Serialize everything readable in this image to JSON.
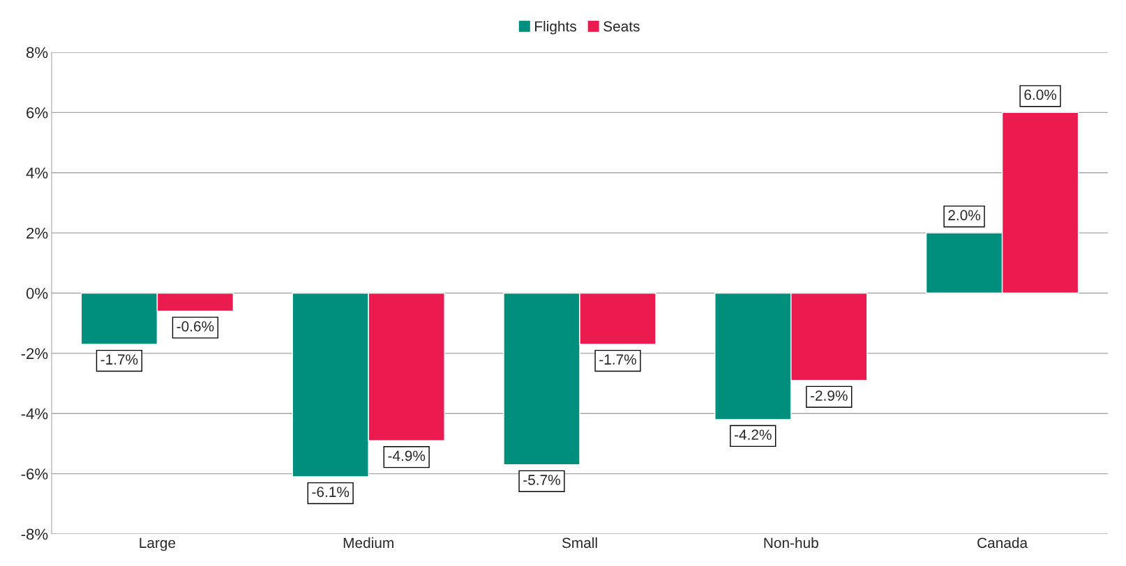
{
  "chart_data": {
    "type": "bar",
    "categories": [
      "Large",
      "Medium",
      "Small",
      "Non-hub",
      "Canada"
    ],
    "series": [
      {
        "name": "Flights",
        "color": "#008f7d",
        "values": [
          -1.7,
          -6.1,
          -5.7,
          -4.2,
          2.0
        ]
      },
      {
        "name": "Seats",
        "color": "#eb1a4f",
        "values": [
          -0.6,
          -4.9,
          -1.7,
          -2.9,
          6.0
        ]
      }
    ],
    "ylim": [
      -8,
      8
    ],
    "yticks": [
      {
        "value": -8,
        "label": "-8%"
      },
      {
        "value": -6,
        "label": "-6%"
      },
      {
        "value": -4,
        "label": "-4%"
      },
      {
        "value": -2,
        "label": "-2%"
      },
      {
        "value": 0,
        "label": "0%"
      },
      {
        "value": 2,
        "label": "2%"
      },
      {
        "value": 4,
        "label": "4%"
      },
      {
        "value": 6,
        "label": "6%"
      },
      {
        "value": 8,
        "label": "8%"
      }
    ],
    "value_labels": [
      [
        "-1.7%",
        "-6.1%",
        "-5.7%",
        "-4.2%",
        "2.0%"
      ],
      [
        "-0.6%",
        "-4.9%",
        "-1.7%",
        "-2.9%",
        "6.0%"
      ]
    ],
    "grid": "y",
    "legend": "top"
  }
}
